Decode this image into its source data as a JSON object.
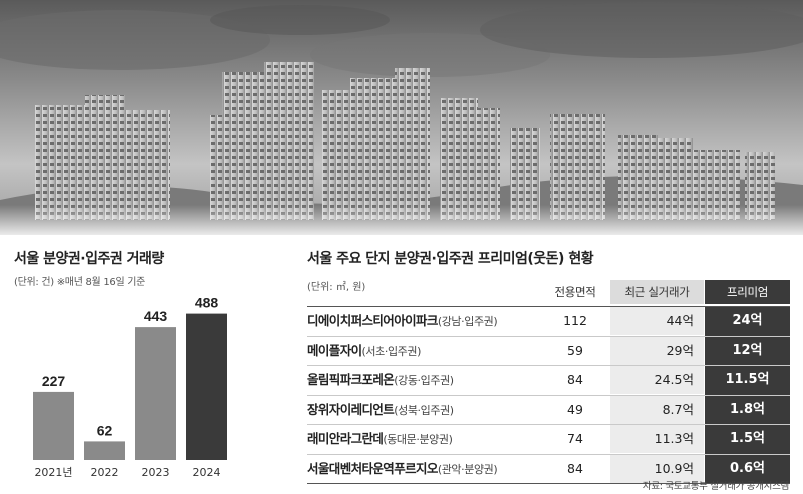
{
  "left_chart": {
    "title": "서울 분양권·입주권 거래량",
    "unit_note": "(단위: 건)  ※매년 8월 16일 기준"
  },
  "chart_data": {
    "type": "bar",
    "categories": [
      "2021년",
      "2022",
      "2023",
      "2024"
    ],
    "values": [
      227,
      62,
      443,
      488
    ],
    "title": "서울 분양권·입주권 거래량",
    "unit": "건",
    "note": "※매년 8월 16일 기준",
    "colors": [
      "#8a8a8a",
      "#8a8a8a",
      "#8a8a8a",
      "#3a3a3a"
    ],
    "ylim": [
      0,
      500
    ]
  },
  "table": {
    "title": "서울 주요 단지 분양권·입주권 프리미엄(웃돈) 현황",
    "unit_note": "(단위: ㎡, 원)",
    "headers": {
      "area": "전용면적",
      "price": "최근 실거래가",
      "premium": "프리미엄"
    },
    "rows": [
      {
        "name": "디에이치퍼스티어아이파크",
        "sub": "(강남·입주권)",
        "area": "112",
        "price": "44억",
        "premium": "24억"
      },
      {
        "name": "메이플자이",
        "sub": "(서초·입주권)",
        "area": "59",
        "price": "29억",
        "premium": "12억"
      },
      {
        "name": "올림픽파크포레온",
        "sub": "(강동·입주권)",
        "area": "84",
        "price": "24.5억",
        "premium": "11.5억"
      },
      {
        "name": "장위자이레디언트",
        "sub": "(성북·입주권)",
        "area": "49",
        "price": "8.7억",
        "premium": "1.8억"
      },
      {
        "name": "래미안라그란데",
        "sub": "(동대문·분양권)",
        "area": "74",
        "price": "11.3억",
        "premium": "1.5억"
      },
      {
        "name": "서울대벤처타운역푸르지오",
        "sub": "(관악·분양권)",
        "area": "84",
        "price": "10.9억",
        "premium": "0.6억"
      }
    ],
    "source": "자료: 국토교통부 실거래가 공개시스템"
  }
}
